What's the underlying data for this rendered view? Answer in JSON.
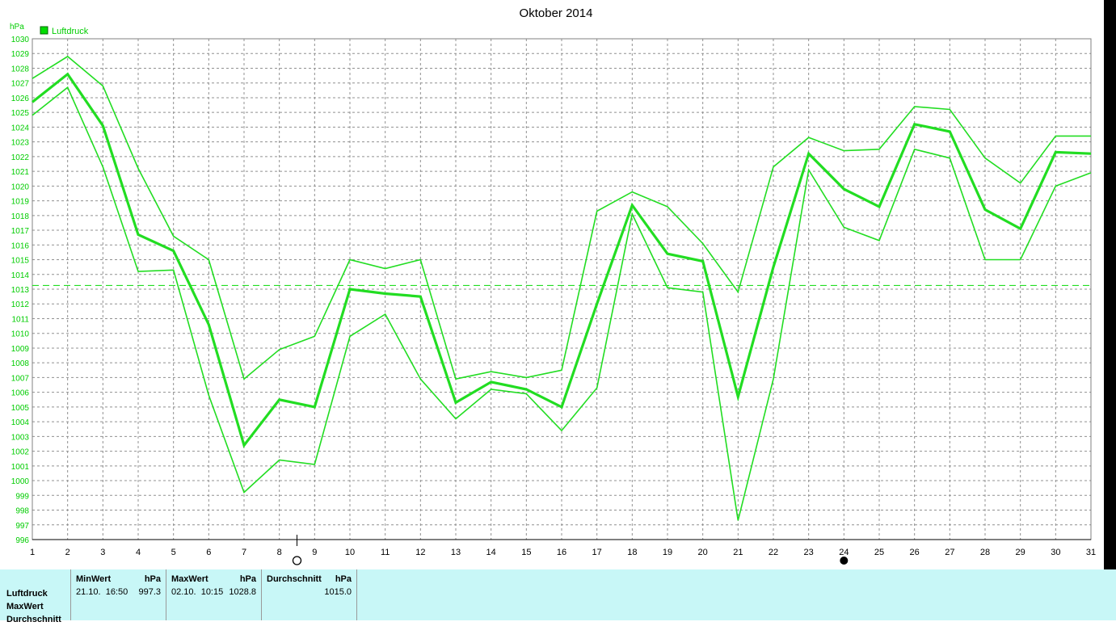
{
  "chart_data": {
    "type": "line",
    "title": "Oktober 2014",
    "ylabel": "hPa",
    "ylim": [
      996,
      1030
    ],
    "grid": true,
    "legend": {
      "position": "top-left",
      "entries": [
        "Luftdruck"
      ]
    },
    "x": [
      1,
      2,
      3,
      4,
      5,
      6,
      7,
      8,
      9,
      10,
      11,
      12,
      13,
      14,
      15,
      16,
      17,
      18,
      19,
      20,
      21,
      22,
      23,
      24,
      25,
      26,
      27,
      28,
      29,
      30,
      31
    ],
    "x_tick_labels": [
      "1",
      "2",
      "3",
      "4",
      "5",
      "6",
      "7",
      "8",
      "9",
      "10",
      "11",
      "12",
      "13",
      "14",
      "15",
      "16",
      "17",
      "18",
      "19",
      "20",
      "21",
      "22",
      "23",
      "24",
      "25",
      "26",
      "27",
      "28",
      "29",
      "30",
      "31"
    ],
    "y_tick_labels": [
      "996",
      "997",
      "998",
      "999",
      "1000",
      "1001",
      "1002",
      "1003",
      "1004",
      "1005",
      "1006",
      "1007",
      "1008",
      "1009",
      "1010",
      "1011",
      "1012",
      "1013",
      "1014",
      "1015",
      "1016",
      "1017",
      "1018",
      "1019",
      "1020",
      "1021",
      "1022",
      "1023",
      "1024",
      "1025",
      "1026",
      "1027",
      "1028",
      "1029",
      "1030"
    ],
    "series": [
      {
        "name": "Luftdruck",
        "values": [
          1025.7,
          1027.6,
          1024.1,
          1016.7,
          1015.6,
          1010.6,
          1002.4,
          1005.5,
          1005.0,
          1013.0,
          1012.7,
          1012.5,
          1005.3,
          1006.7,
          1006.2,
          1005.0,
          1012.0,
          1018.7,
          1015.4,
          1014.9,
          1005.7,
          1014.5,
          1022.2,
          1019.8,
          1018.6,
          1024.2,
          1023.7,
          1018.4,
          1017.1,
          1022.3,
          1022.2
        ]
      },
      {
        "values": [
          1027.3,
          1028.8,
          1026.8,
          1021.2,
          1016.6,
          1015.0,
          1006.9,
          1008.9,
          1009.8,
          1015.0,
          1014.4,
          1015.0,
          1006.9,
          1007.4,
          1007.0,
          1007.5,
          1018.3,
          1019.6,
          1018.6,
          1016.1,
          1012.8,
          1021.3,
          1023.3,
          1022.4,
          1022.5,
          1025.4,
          1025.2,
          1021.9,
          1020.2,
          1023.4,
          1023.4
        ]
      },
      {
        "values": [
          1024.8,
          1026.7,
          1021.3,
          1014.2,
          1014.3,
          1005.8,
          999.2,
          1001.4,
          1001.1,
          1009.8,
          1011.3,
          1006.9,
          1004.2,
          1006.2,
          1005.9,
          1003.4,
          1006.3,
          1018.1,
          1013.1,
          1012.8,
          997.3,
          1006.9,
          1021.1,
          1017.2,
          1016.3,
          1022.5,
          1021.9,
          1015.0,
          1015.0,
          1020.0,
          1020.9
        ]
      }
    ],
    "reference_line": 1013.25,
    "markers": [
      {
        "x": 8.5,
        "type": "full-moon-symbol"
      },
      {
        "x": 24,
        "type": "new-moon-symbol"
      }
    ],
    "colors": {
      "line": "#22dd22",
      "axis_text": "#00cc00",
      "grid": "#909090"
    }
  },
  "stats": {
    "row_labels": [
      "Luftdruck",
      "MaxWert",
      "Durchschnitt"
    ],
    "min": {
      "header": "MinWert",
      "unit": "hPa",
      "datetime": "21.10.  16:50",
      "value": "997.3"
    },
    "max": {
      "header": "MaxWert",
      "unit": "hPa",
      "datetime": "02.10.  10:15",
      "value": "1028.8"
    },
    "avg": {
      "header": "Durchschnitt",
      "unit": "hPa",
      "value": "1015.0"
    }
  }
}
